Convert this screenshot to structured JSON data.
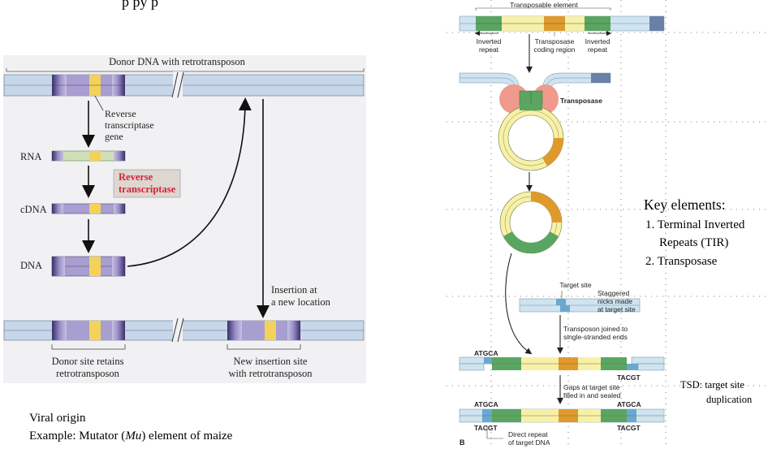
{
  "title_fragment": "p             py    p",
  "left_panel": {
    "donor_label": "Donor DNA with retrotransposon",
    "rt_gene_label": [
      "Reverse",
      "transcriptase",
      "gene"
    ],
    "rna_label": "RNA",
    "cdna_label": "cDNA",
    "dna_label": "DNA",
    "rt_box_label": [
      "Reverse",
      "transcriptase"
    ],
    "insertion_label": [
      "Insertion at",
      "a new location"
    ],
    "donor_site_label": [
      "Donor site retains",
      "retrotransposon"
    ],
    "new_site_label": [
      "New insertion site",
      "with retrotransposon"
    ]
  },
  "bottom_left": {
    "line1": "Viral origin",
    "line2_pre": "Example: Mutator (",
    "line2_italic": "Mu",
    "line2_post": ") element of maize"
  },
  "right_panel": {
    "transposable_label": "Transposable element",
    "inverted_repeat_left": [
      "Inverted",
      "repeat"
    ],
    "coding_region": [
      "Transposase",
      "coding region"
    ],
    "inverted_repeat_right": [
      "Inverted",
      "repeat"
    ],
    "transposase_label": "Transposase",
    "target_site_label": "Target site",
    "staggered_label": [
      "Staggered",
      "nicks made",
      "at target site"
    ],
    "joined_label": [
      "Transposon joined to",
      "single-stranded ends"
    ],
    "seq_atgca_1": "ATGCA",
    "seq_tacgt_1": "TACGT",
    "gaps_label": [
      "Gaps at target site",
      "filled in and sealed"
    ],
    "seq_atgca_2": "ATGCA",
    "seq_atgca_3": "ATGCA",
    "seq_tacgt_2": "TACGT",
    "seq_tacgt_3": "TACGT",
    "direct_repeat_label": [
      "Direct repeat",
      "of target DNA"
    ],
    "panel_letter": "B"
  },
  "key_elements": {
    "heading": "Key elements:",
    "item1_a": "1. Terminal Inverted",
    "item1_b": "Repeats (TIR)",
    "item2": "2. Transposase"
  },
  "tsd": {
    "line1": "TSD: target site",
    "line2": "duplication"
  },
  "colors": {
    "dna_blue": "#c8d6ea",
    "purple": "#9a8fc6",
    "purple_dark": "#3a2f6b",
    "yellow": "#f3d25a",
    "rna_green": "#cfe0b8",
    "rt_red": "#d6213a",
    "rt_box": "#ddd7d0",
    "panel_bg": "#f1f1f3",
    "tir_green": "#5aa562",
    "transposon_yellow": "#f7f0a8",
    "transposase_orange": "#e09a2c",
    "transposase_pink": "#ef9a8c",
    "dna_light": "#cfe4f0"
  }
}
